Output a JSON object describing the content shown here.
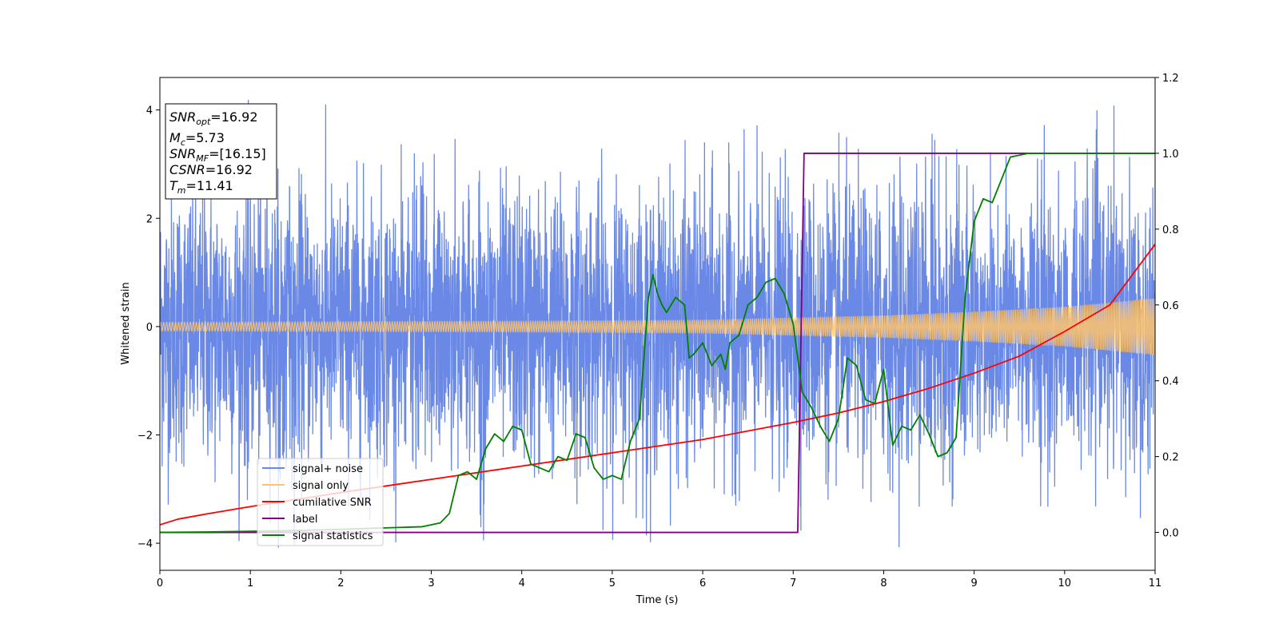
{
  "chart_data": {
    "type": "line",
    "title": "",
    "xlabel": "Time (s)",
    "ylabel": "Whitened strain",
    "y2label": "",
    "xlim": [
      0,
      11
    ],
    "ylim": [
      -4.5,
      4.6
    ],
    "y2lim": [
      -0.1,
      1.2
    ],
    "x_ticks": [
      "0",
      "1",
      "2",
      "3",
      "4",
      "5",
      "6",
      "7",
      "8",
      "9",
      "10",
      "11"
    ],
    "y_ticks": [
      "−4",
      "−2",
      "0",
      "2",
      "4"
    ],
    "y2_ticks": [
      "0.0",
      "0.2",
      "0.4",
      "0.6",
      "0.8",
      "1.0",
      "1.2"
    ],
    "grid": false,
    "legend_position": "lower-left",
    "info_box": {
      "lines": [
        {
          "label": "SNR",
          "sub": "opt",
          "value": "=16.92"
        },
        {
          "label": "M",
          "sub": "c",
          "value": "=5.73"
        },
        {
          "label": "SNR",
          "sub": "MF",
          "value": "=[16.15]"
        },
        {
          "label": "CSNR",
          "sub": "",
          "value": "=16.92"
        },
        {
          "label": "T",
          "sub": "m",
          "value": "=11.41"
        }
      ]
    },
    "series": [
      {
        "name": "signal+ noise",
        "axis": "left",
        "color": "#6a89e6",
        "kind": "noise",
        "sigma": 1.25,
        "bounds": [
          -4.1,
          4.2
        ]
      },
      {
        "name": "signal only",
        "axis": "left",
        "color": "#ffc46b",
        "kind": "chirp",
        "amplitude": {
          "x": [
            0,
            2,
            4,
            6,
            8,
            9,
            10,
            11
          ],
          "y": [
            0.08,
            0.09,
            0.1,
            0.12,
            0.2,
            0.27,
            0.36,
            0.52
          ]
        }
      },
      {
        "name": "cumilative SNR",
        "axis": "right",
        "color": "#ff0000",
        "x": [
          0,
          0.2,
          0.5,
          1,
          2,
          3,
          4,
          5,
          6,
          7,
          7.5,
          8,
          8.5,
          9,
          9.5,
          10,
          10.5,
          11
        ],
        "y": [
          0.02,
          0.035,
          0.048,
          0.068,
          0.105,
          0.14,
          0.175,
          0.21,
          0.245,
          0.29,
          0.315,
          0.345,
          0.38,
          0.42,
          0.465,
          0.53,
          0.6,
          0.76
        ]
      },
      {
        "name": "label",
        "axis": "right",
        "color": "#800080",
        "x": [
          0,
          7.05,
          7.12,
          11
        ],
        "y": [
          0,
          0,
          1.0,
          1.0
        ]
      },
      {
        "name": "signal statistics",
        "axis": "right",
        "color": "#008000",
        "x": [
          0,
          0.5,
          1,
          1.5,
          2,
          2.5,
          2.9,
          3.0,
          3.1,
          3.2,
          3.3,
          3.4,
          3.5,
          3.6,
          3.7,
          3.8,
          3.9,
          4.0,
          4.1,
          4.2,
          4.3,
          4.4,
          4.5,
          4.6,
          4.7,
          4.8,
          4.9,
          5.0,
          5.1,
          5.2,
          5.3,
          5.4,
          5.45,
          5.5,
          5.55,
          5.6,
          5.7,
          5.8,
          5.85,
          5.9,
          6.0,
          6.1,
          6.2,
          6.25,
          6.3,
          6.4,
          6.5,
          6.6,
          6.7,
          6.8,
          6.9,
          7.0,
          7.1,
          7.2,
          7.3,
          7.4,
          7.5,
          7.6,
          7.7,
          7.8,
          7.9,
          8.0,
          8.1,
          8.2,
          8.3,
          8.4,
          8.5,
          8.6,
          8.7,
          8.8,
          8.9,
          9.0,
          9.1,
          9.2,
          9.3,
          9.4,
          9.6,
          9.8,
          10.0,
          10.2,
          10.5,
          10.8,
          11
        ],
        "y": [
          0.0,
          0.001,
          0.003,
          0.005,
          0.008,
          0.012,
          0.015,
          0.02,
          0.025,
          0.05,
          0.15,
          0.16,
          0.14,
          0.22,
          0.26,
          0.24,
          0.28,
          0.27,
          0.18,
          0.17,
          0.16,
          0.2,
          0.19,
          0.26,
          0.25,
          0.17,
          0.14,
          0.15,
          0.14,
          0.24,
          0.3,
          0.62,
          0.68,
          0.63,
          0.6,
          0.58,
          0.62,
          0.6,
          0.46,
          0.47,
          0.5,
          0.44,
          0.47,
          0.43,
          0.5,
          0.52,
          0.6,
          0.62,
          0.66,
          0.67,
          0.63,
          0.55,
          0.37,
          0.33,
          0.28,
          0.24,
          0.3,
          0.46,
          0.44,
          0.35,
          0.34,
          0.43,
          0.23,
          0.28,
          0.27,
          0.31,
          0.26,
          0.2,
          0.21,
          0.25,
          0.62,
          0.82,
          0.88,
          0.87,
          0.93,
          0.99,
          1.0,
          1.0,
          1.0,
          1.0,
          1.0,
          1.0,
          1.0
        ]
      }
    ]
  }
}
